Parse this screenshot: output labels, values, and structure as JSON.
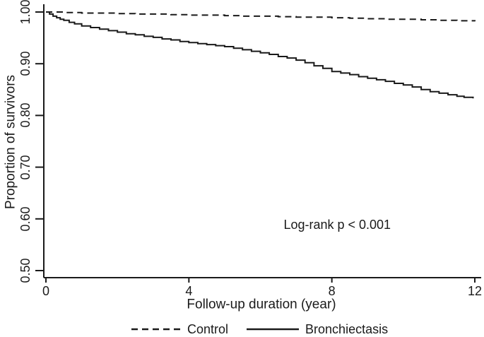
{
  "figure": {
    "background": "#ffffff",
    "line_color": "#1a1a1a",
    "text_color": "#1a1a1a"
  },
  "chart_data": {
    "type": "line",
    "subtype": "kaplan-meier-step",
    "title": "",
    "xlabel": "Follow-up duration (year)",
    "ylabel": "Proportion of survivors",
    "xlim": [
      0,
      12
    ],
    "ylim": [
      0.5,
      1.0
    ],
    "grid": false,
    "legend_position": "bottom",
    "xticks": [
      0,
      4,
      8,
      12
    ],
    "xtick_labels": [
      "0",
      "4",
      "8",
      "12"
    ],
    "ytick_values": [
      1.0,
      0.9,
      0.8,
      0.7,
      0.6,
      0.5
    ],
    "ytick_labels": [
      "1.00",
      "0.90",
      "0.80",
      "0.70",
      "0.60",
      "0.50"
    ],
    "annotation": {
      "text": "Log-rank p < 0.001",
      "x": 8.15,
      "y": 0.589
    },
    "series": [
      {
        "name": "Control",
        "style": "dashed",
        "x": [
          0,
          0.5,
          1,
          1.5,
          2,
          2.5,
          3,
          3.5,
          4,
          4.5,
          5,
          5.5,
          6,
          6.5,
          7,
          7.5,
          8,
          8.5,
          9,
          9.5,
          10,
          10.5,
          11,
          11.5,
          12
        ],
        "y": [
          1.0,
          0.999,
          0.998,
          0.998,
          0.997,
          0.996,
          0.996,
          0.995,
          0.994,
          0.994,
          0.993,
          0.992,
          0.992,
          0.991,
          0.99,
          0.99,
          0.989,
          0.988,
          0.987,
          0.986,
          0.986,
          0.985,
          0.984,
          0.983,
          0.982
        ]
      },
      {
        "name": "Bronchiectasis",
        "style": "solid",
        "x": [
          0,
          0.1,
          0.2,
          0.3,
          0.4,
          0.5,
          0.65,
          0.8,
          1.0,
          1.25,
          1.5,
          1.75,
          2,
          2.25,
          2.5,
          2.75,
          3,
          3.25,
          3.5,
          3.75,
          4,
          4.25,
          4.5,
          4.75,
          5,
          5.25,
          5.5,
          5.75,
          6,
          6.25,
          6.5,
          6.75,
          7,
          7.25,
          7.5,
          7.75,
          8,
          8.25,
          8.5,
          8.75,
          9,
          9.25,
          9.5,
          9.75,
          10,
          10.25,
          10.5,
          10.75,
          11,
          11.25,
          11.5,
          11.7,
          11.95
        ],
        "y": [
          1.0,
          0.996,
          0.992,
          0.989,
          0.986,
          0.984,
          0.98,
          0.977,
          0.973,
          0.97,
          0.967,
          0.964,
          0.961,
          0.958,
          0.956,
          0.953,
          0.951,
          0.948,
          0.946,
          0.943,
          0.941,
          0.939,
          0.937,
          0.935,
          0.933,
          0.93,
          0.927,
          0.924,
          0.921,
          0.918,
          0.914,
          0.911,
          0.907,
          0.902,
          0.896,
          0.891,
          0.885,
          0.882,
          0.879,
          0.875,
          0.872,
          0.869,
          0.866,
          0.862,
          0.859,
          0.855,
          0.85,
          0.846,
          0.843,
          0.84,
          0.837,
          0.835,
          0.833
        ]
      }
    ]
  }
}
